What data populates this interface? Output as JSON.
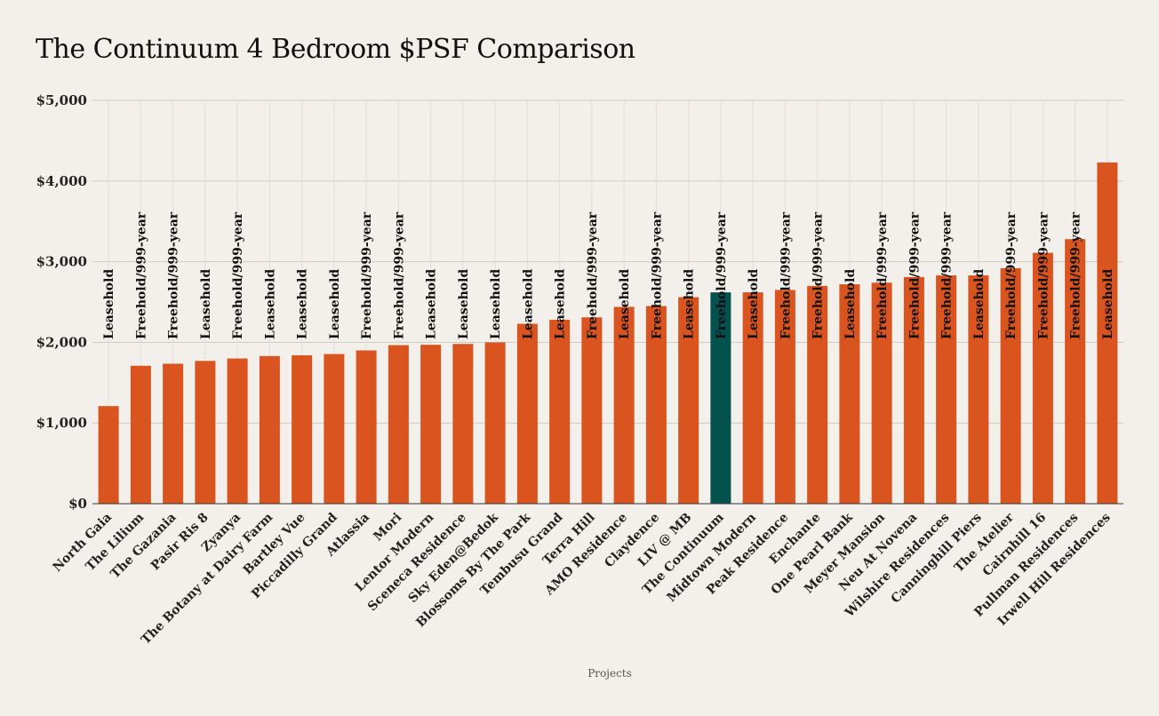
{
  "chart_data": {
    "type": "bar",
    "title": "The Continuum 4 Bedroom $PSF Comparison",
    "xlabel": "Projects",
    "ylabel": "",
    "ylim": [
      0,
      5000
    ],
    "yticks": [
      "$0",
      "$1,000",
      "$2,000",
      "$3,000",
      "$4,000",
      "$5,000"
    ],
    "grid": true,
    "bar_color": "#d9541e",
    "highlight_color": "#03524f",
    "highlight": "The Continuum",
    "categories": [
      "North Gaia",
      "The Lilium",
      "The Gazania",
      "Pasir Ris 8",
      "Zyanya",
      "The Botany at Dairy Farm",
      "Bartley Vue",
      "Piccadilly Grand",
      "Atlassia",
      "Mori",
      "Lentor Modern",
      "Sceneca Residence",
      "Sky Eden@Bedok",
      "Blossoms By The Park",
      "Tembusu Grand",
      "Terra Hill",
      "AMO Residence",
      "Claydence",
      "LIV @ MB",
      "The Continuum",
      "Midtown Modern",
      "Peak Residence",
      "Enchante",
      "One Pearl Bank",
      "Meyer Mansion",
      "Neu At Novena",
      "Wilshire Residences",
      "Canninghill Piers",
      "The Atelier",
      "Cairnhill 16",
      "Pullman Residences",
      "Irwell Hill Residences"
    ],
    "values": [
      1210,
      1710,
      1735,
      1770,
      1800,
      1830,
      1840,
      1855,
      1900,
      1965,
      1970,
      1980,
      2000,
      2230,
      2280,
      2310,
      2440,
      2450,
      2560,
      2620,
      2620,
      2650,
      2700,
      2720,
      2740,
      2810,
      2830,
      2830,
      2920,
      3110,
      3280,
      4230
    ],
    "tenure": [
      "Leasehold",
      "Freehold/999-year",
      "Freehold/999-year",
      "Leasehold",
      "Freehold/999-year",
      "Leasehold",
      "Leasehold",
      "Leasehold",
      "Freehold/999-year",
      "Freehold/999-year",
      "Leasehold",
      "Leasehold",
      "Leasehold",
      "Leasehold",
      "Leasehold",
      "Freehold/999-year",
      "Leasehold",
      "Freehold/999-year",
      "Leasehold",
      "Freehold/999-year",
      "Leasehold",
      "Freehold/999-year",
      "Freehold/999-year",
      "Leasehold",
      "Freehold/999-year",
      "Freehold/999-year",
      "Freehold/999-year",
      "Leasehold",
      "Freehold/999-year",
      "Freehold/999-year",
      "Freehold/999-year",
      "Leasehold"
    ]
  }
}
